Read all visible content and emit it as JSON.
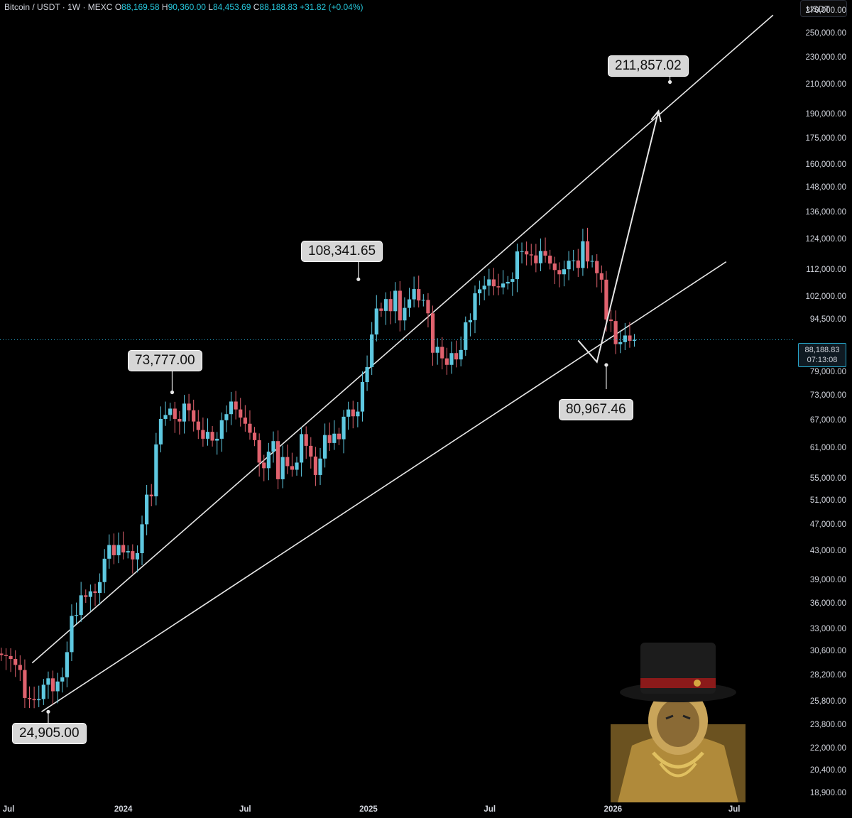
{
  "header": {
    "symbol": "Bitcoin / USDT · 1W · MEXC",
    "open_label": "O",
    "open": "88,169.58",
    "high_label": "H",
    "high": "90,360.00",
    "low_label": "L",
    "low": "84,453.69",
    "close_label": "C",
    "close": "88,188.83",
    "change": "+31.82 (+0.04%)"
  },
  "currency_button": "USDT",
  "current_price": {
    "price": "88,188.83",
    "countdown": "07:13:08"
  },
  "callouts": [
    {
      "text": "24,905.00"
    },
    {
      "text": "73,777.00"
    },
    {
      "text": "108,341.65"
    },
    {
      "text": "211,857.02"
    },
    {
      "text": "80,967.46"
    }
  ],
  "colors": {
    "up": "#5ec8e0",
    "down": "#e0626e",
    "background": "#000000",
    "lines": "#e6e6e6"
  },
  "chart_data": {
    "type": "candlestick",
    "title": "Bitcoin / USDT · 1W · MEXC",
    "yscale": "log",
    "ylim": [
      18300,
      280000
    ],
    "xlim": [
      "2023-07-01",
      "2026-09-30"
    ],
    "grid": false,
    "y_ticks": [
      "270,000.00",
      "250,000.00",
      "230,000.00",
      "210,000.00",
      "190,000.00",
      "175,000.00",
      "160,000.00",
      "148,000.00",
      "136,000.00",
      "124,000.00",
      "112,000.00",
      "102,000.00",
      "94,500.00",
      "79,000.00",
      "73,000.00",
      "67,000.00",
      "61,000.00",
      "55,000.00",
      "51,000.00",
      "47,000.00",
      "43,000.00",
      "39,000.00",
      "36,000.00",
      "33,000.00",
      "30,600.00",
      "28,200.00",
      "25,800.00",
      "23,800.00",
      "22,000.00",
      "20,400.00",
      "18,900.00"
    ],
    "x_ticks": [
      "Jul",
      "2024",
      "Jul",
      "2025",
      "Jul",
      "2026",
      "Jul"
    ],
    "ohlc_weekly_close": [
      30200,
      30100,
      29800,
      29200,
      28700,
      26100,
      26000,
      25900,
      26000,
      27300,
      27900,
      26700,
      27600,
      28000,
      30500,
      34500,
      34600,
      37000,
      36800,
      37500,
      37300,
      38700,
      41900,
      43900,
      42400,
      43900,
      42800,
      43000,
      41800,
      42700,
      47100,
      52100,
      51800,
      61800,
      67400,
      68300,
      69800,
      67400,
      66800,
      71000,
      69400,
      66800,
      64900,
      63000,
      64500,
      62600,
      63000,
      67100,
      68500,
      71500,
      69600,
      67700,
      66300,
      64300,
      62700,
      58100,
      57000,
      60300,
      62500,
      54900,
      59200,
      57400,
      56700,
      58100,
      64000,
      61500,
      59300,
      55700,
      58900,
      63800,
      62100,
      64100,
      62900,
      67900,
      69600,
      68000,
      69100,
      76400,
      80400,
      89800,
      98100,
      97300,
      101300,
      97200,
      104200,
      94200,
      98300,
      101200,
      104800,
      100800,
      101000,
      96500,
      84400,
      86100,
      82800,
      81000,
      84300,
      82500,
      85200,
      93600,
      94300,
      103300,
      104700,
      106000,
      108300,
      105800,
      105400,
      106800,
      107400,
      108400,
      119100,
      119200,
      117900,
      117500,
      114400,
      119300,
      117400,
      114300,
      111800,
      110200,
      112100,
      115400,
      115500,
      112600,
      123300,
      115100,
      115300,
      110600,
      108200,
      94500,
      94000,
      86900,
      87500,
      89500,
      87900,
      88200
    ],
    "channel": {
      "upper": {
        "from": [
          "2023-08-18",
          29400
        ],
        "to": [
          "2026-08-28",
          266000
        ]
      },
      "lower": {
        "from": [
          "2023-09-01",
          24905
        ],
        "to": [
          "2026-06-19",
          115000
        ]
      }
    },
    "levels": [
      {
        "date": "2023-09-11",
        "price": 24905.0
      },
      {
        "date": "2024-03-14",
        "price": 73777.0
      },
      {
        "date": "2024-12-17",
        "price": 108341.65
      },
      {
        "date": "2026-03-27",
        "price": 211857.02
      },
      {
        "date": "2025-12-22",
        "price": 80967.46
      }
    ],
    "projection": [
      [
        "2025-11-10",
        88000
      ],
      [
        "2025-12-08",
        81800
      ],
      [
        "2026-03-10",
        192000
      ]
    ]
  },
  "watermark": {
    "icon": "top-hat-mascot-icon"
  }
}
